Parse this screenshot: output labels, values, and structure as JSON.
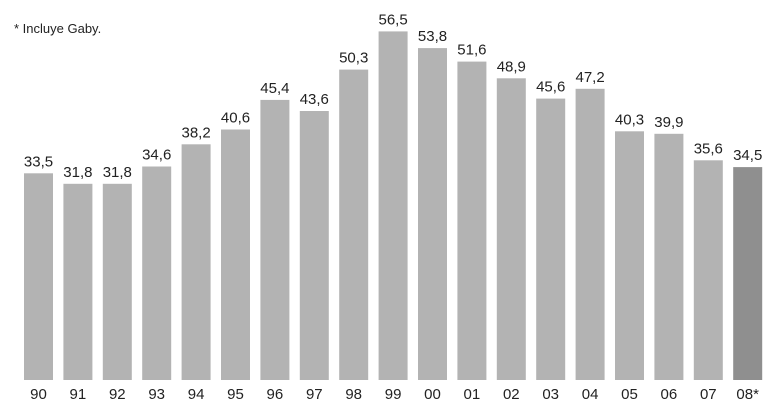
{
  "chart_data": {
    "type": "bar",
    "title": "",
    "note": "* Incluye Gaby.",
    "xlabel": "",
    "ylabel": "",
    "categories": [
      "90",
      "91",
      "92",
      "93",
      "94",
      "95",
      "96",
      "97",
      "98",
      "99",
      "00",
      "01",
      "02",
      "03",
      "04",
      "05",
      "06",
      "07",
      "08*"
    ],
    "values": [
      33.5,
      31.8,
      31.8,
      34.6,
      38.2,
      40.6,
      45.4,
      43.6,
      50.3,
      56.5,
      53.8,
      51.6,
      48.9,
      45.6,
      47.2,
      40.3,
      39.9,
      35.6,
      34.5
    ],
    "value_labels": [
      "33,5",
      "31,8",
      "31,8",
      "34,6",
      "38,2",
      "40,6",
      "45,4",
      "43,6",
      "50,3",
      "56,5",
      "53,8",
      "51,6",
      "48,9",
      "45,6",
      "47,2",
      "40,3",
      "39,9",
      "35,6",
      "34,5"
    ],
    "ylim": [
      0,
      60
    ],
    "grid": false,
    "legend": "none",
    "colors": {
      "bar": "#b3b3b3",
      "highlight_bar": "#8f8f8f",
      "text": "#222222"
    },
    "highlight_index": 18
  }
}
